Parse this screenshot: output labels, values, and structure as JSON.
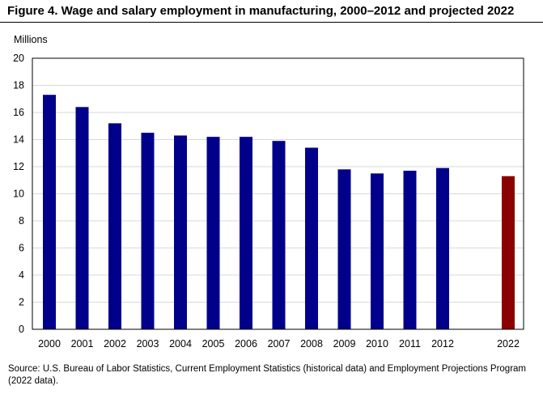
{
  "figure": {
    "title": "Figure 4. Wage and salary employment in manufacturing, 2000–2012 and projected 2022",
    "source": "Source: U.S. Bureau of Labor Statistics, Current Employment Statistics (historical data) and Employment Projections Program (2022 data)."
  },
  "chart_data": {
    "type": "bar",
    "title": "Figure 4. Wage and salary employment in manufacturing, 2000–2012 and projected 2022",
    "xlabel": "",
    "ylabel": "Millions",
    "ylim": [
      0,
      20
    ],
    "yticks": [
      0,
      2,
      4,
      6,
      8,
      10,
      12,
      14,
      16,
      18,
      20
    ],
    "grid": true,
    "categories": [
      "2000",
      "2001",
      "2002",
      "2003",
      "2004",
      "2005",
      "2006",
      "2007",
      "2008",
      "2009",
      "2010",
      "2011",
      "2012",
      "2022"
    ],
    "values": [
      17.3,
      16.4,
      15.2,
      14.5,
      14.3,
      14.2,
      14.2,
      13.9,
      13.4,
      11.8,
      11.5,
      11.7,
      11.9,
      11.3
    ],
    "colors": {
      "historical": "#00008b",
      "projected": "#8b0000",
      "grid": "#d9d9d9",
      "axis": "#000000"
    }
  }
}
